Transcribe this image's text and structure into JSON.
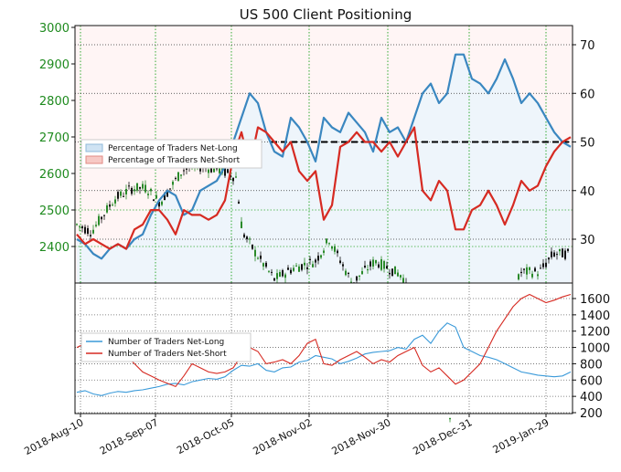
{
  "chart_data": [
    {
      "type": "line",
      "title": "US 500 Client Positioning",
      "price_axis": {
        "ticks": [
          2400,
          2500,
          2600,
          2700,
          2800,
          2900,
          3000
        ],
        "color": "#1e8a1e"
      },
      "percent_axis": {
        "ticks": [
          30,
          40,
          50,
          60,
          70
        ]
      },
      "x_ticks": [
        "2018-Aug-10",
        "2018-Sep-07",
        "2018-Oct-05",
        "2018-Nov-02",
        "2018-Nov-30",
        "2018-Dec-31",
        "2019-Jan-29"
      ],
      "reference_line": {
        "value": 50,
        "style": "dashed",
        "color": "#000000"
      },
      "legend": {
        "placement": "left",
        "entries": [
          "Percentage of Traders Net-Long",
          "Percentage of Traders Net-Short"
        ]
      },
      "colors": {
        "net_long": "#3a87c0",
        "net_short": "#d62a22",
        "candle_up": "#2a8a2a",
        "candle_down": "#111111"
      },
      "series": [
        {
          "name": "Percentage of Traders Net-Long",
          "values": [
            30,
            29,
            27,
            26,
            28,
            29,
            28,
            30,
            31,
            35,
            38,
            40,
            39,
            35,
            36,
            40,
            41,
            42,
            45,
            50,
            55,
            60,
            58,
            52,
            48,
            47,
            55,
            53,
            50,
            46,
            55,
            53,
            52,
            56,
            54,
            52,
            48,
            55,
            52,
            53,
            50,
            55,
            60,
            62,
            58,
            60,
            68,
            68,
            63,
            62,
            60,
            63,
            67,
            63,
            58,
            60,
            58,
            55,
            52,
            50,
            49
          ]
        },
        {
          "name": "Percentage of Traders Net-Short",
          "values": [
            31,
            29,
            30,
            29,
            28,
            29,
            28,
            32,
            33,
            36,
            36,
            34,
            31,
            36,
            35,
            35,
            34,
            35,
            38,
            47,
            52,
            45,
            53,
            52,
            50,
            48,
            50,
            44,
            42,
            44,
            34,
            37,
            49,
            50,
            52,
            50,
            50,
            48,
            50,
            47,
            50,
            53,
            40,
            38,
            42,
            40,
            32,
            32,
            36,
            37,
            40,
            37,
            33,
            37,
            42,
            40,
            41,
            45,
            48,
            50,
            51
          ]
        }
      ]
    },
    {
      "type": "line",
      "y_ticks": [
        200,
        400,
        600,
        800,
        1000,
        1200,
        1400,
        1600
      ],
      "legend": {
        "placement": "left",
        "entries": [
          "Number of Traders Net-Long",
          "Number of Traders Net-Short"
        ]
      },
      "series": [
        {
          "name": "Number of Traders Net-Long",
          "values": [
            450,
            470,
            430,
            410,
            440,
            460,
            450,
            470,
            480,
            500,
            520,
            550,
            560,
            540,
            580,
            600,
            620,
            610,
            640,
            720,
            780,
            770,
            800,
            720,
            700,
            750,
            760,
            820,
            840,
            900,
            880,
            860,
            800,
            830,
            870,
            920,
            940,
            950,
            960,
            1000,
            980,
            1100,
            1150,
            1050,
            1200,
            1300,
            1250,
            1000,
            950,
            900,
            880,
            850,
            800,
            750,
            700,
            680,
            660,
            650,
            640,
            650,
            700
          ]
        },
        {
          "name": "Number of Traders Net-Short",
          "values": [
            1000,
            1050,
            1100,
            1150,
            1100,
            1000,
            900,
            800,
            700,
            650,
            600,
            560,
            520,
            650,
            800,
            750,
            700,
            680,
            700,
            750,
            900,
            1000,
            950,
            800,
            820,
            850,
            800,
            900,
            1050,
            1100,
            800,
            780,
            850,
            900,
            950,
            880,
            800,
            850,
            820,
            900,
            950,
            1000,
            780,
            700,
            750,
            650,
            550,
            600,
            700,
            800,
            1000,
            1200,
            1350,
            1500,
            1600,
            1650,
            1600,
            1550,
            1580,
            1620,
            1650
          ]
        }
      ]
    }
  ]
}
